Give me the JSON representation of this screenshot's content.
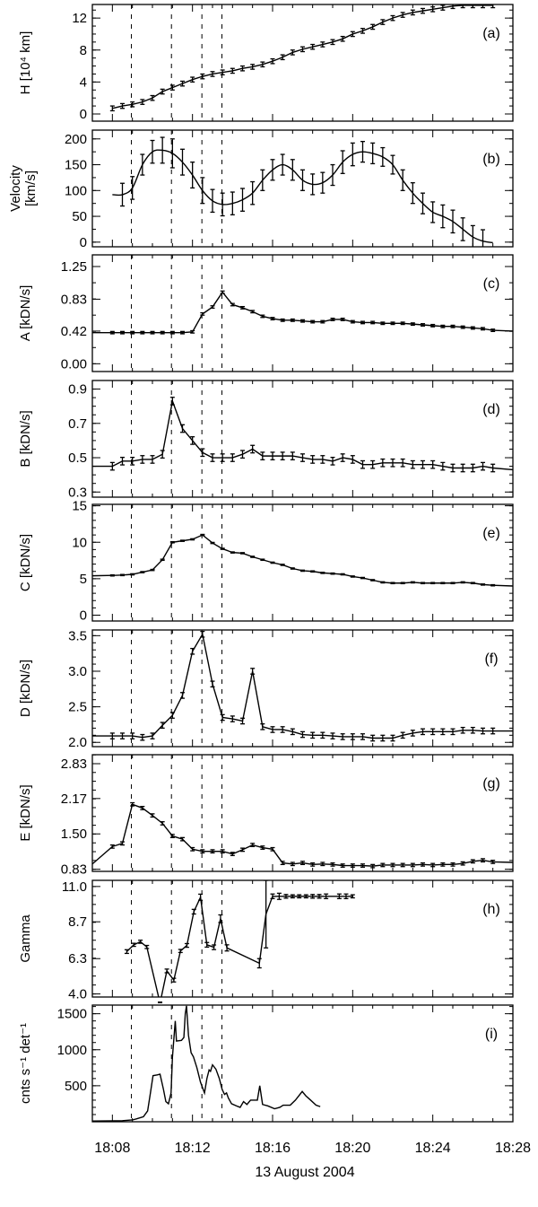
{
  "chart_data": {
    "type": "line",
    "layout": "9 vertically stacked panels sharing time axis",
    "xlabel": "13 August 2004",
    "x_unit": "minutes after 18:00",
    "xlim": [
      7,
      28
    ],
    "x_ticks": [
      8,
      12,
      16,
      20,
      24,
      28
    ],
    "x_tick_labels": [
      "18:08",
      "18:12",
      "18:16",
      "18:20",
      "18:24",
      "18:28"
    ],
    "x_minor_step": 1,
    "vertical_dashed_markers": [
      8.95,
      10.95,
      12.47,
      13.47
    ],
    "panels": [
      {
        "id": "a",
        "tag": "(a)",
        "ylabel": [
          "H [10⁴ km]"
        ],
        "ylim": [
          -0.9,
          13.7
        ],
        "yticks": [
          0,
          4,
          8,
          12
        ],
        "ytick_labels": [
          "0",
          "4",
          "8",
          "12"
        ],
        "y_minor_step": 1,
        "style": "line-errorbars",
        "x0": 8,
        "dx": 0.5,
        "err": 0.3,
        "y": [
          0.7,
          1.0,
          1.2,
          1.5,
          2.0,
          2.8,
          3.3,
          3.8,
          4.3,
          4.7,
          5.0,
          5.2,
          5.4,
          5.7,
          5.9,
          6.2,
          6.6,
          7.1,
          7.7,
          8.1,
          8.4,
          8.7,
          9.0,
          9.4,
          10.0,
          10.4,
          10.9,
          11.5,
          12.0,
          12.4,
          12.7,
          12.9,
          13.1,
          13.3,
          13.5,
          13.6,
          13.6,
          13.6,
          13.6
        ]
      },
      {
        "id": "b",
        "tag": "(b)",
        "ylabel": [
          "Velocity",
          "[km/s]"
        ],
        "ylim": [
          -9,
          217
        ],
        "yticks": [
          0,
          50,
          100,
          150,
          200
        ],
        "ytick_labels": [
          "0",
          "50",
          "100",
          "150",
          "200"
        ],
        "y_minor_step": 25,
        "style": "smooth-errorbars",
        "x0": 8.5,
        "dx": 0.5,
        "lead_x": 8.0,
        "lead": 92,
        "tail_x": 27.0,
        "tail": -1,
        "y": [
          92,
          105,
          150,
          175,
          178,
          172,
          155,
          130,
          100,
          80,
          73,
          75,
          82,
          95,
          120,
          140,
          150,
          140,
          120,
          112,
          115,
          130,
          155,
          170,
          175,
          172,
          165,
          150,
          120,
          95,
          75,
          58,
          50,
          40,
          25,
          10,
          2
        ],
        "err": [
          22,
          22,
          20,
          22,
          25,
          28,
          25,
          25,
          25,
          22,
          22,
          22,
          22,
          22,
          20,
          20,
          20,
          20,
          20,
          20,
          20,
          20,
          22,
          22,
          20,
          20,
          18,
          18,
          20,
          20,
          20,
          20,
          22,
          22,
          22,
          22,
          22
        ]
      },
      {
        "id": "c",
        "tag": "(c)",
        "ylabel": [
          "A [kDN/s]"
        ],
        "ylim": [
          -0.1,
          1.4
        ],
        "yticks": [
          0,
          0.42,
          0.83,
          1.25
        ],
        "ytick_labels": [
          "0.00",
          "0.42",
          "0.83",
          "1.25"
        ],
        "y_minor_step": 0.2083,
        "style": "line-errorbars",
        "x0": 8,
        "dx": 0.5,
        "err": 0.015,
        "lead": 0.4,
        "tail": 0.42,
        "y": [
          0.4,
          0.4,
          0.4,
          0.4,
          0.4,
          0.4,
          0.4,
          0.4,
          0.41,
          0.64,
          0.73,
          0.92,
          0.76,
          0.72,
          0.67,
          0.61,
          0.58,
          0.56,
          0.56,
          0.55,
          0.54,
          0.54,
          0.57,
          0.57,
          0.54,
          0.53,
          0.53,
          0.52,
          0.52,
          0.52,
          0.51,
          0.5,
          0.49,
          0.48,
          0.48,
          0.47,
          0.46,
          0.45,
          0.43
        ]
      },
      {
        "id": "d",
        "tag": "(d)",
        "ylabel": [
          "B [kDN/s]"
        ],
        "ylim": [
          0.27,
          0.95
        ],
        "yticks": [
          0.3,
          0.5,
          0.7,
          0.9
        ],
        "ytick_labels": [
          "0.3",
          "0.5",
          "0.7",
          "0.9"
        ],
        "y_minor_step": 0.05,
        "style": "line-errorbars",
        "x0": 8,
        "dx": 0.5,
        "err": 0.022,
        "lead": 0.45,
        "tail": 0.43,
        "y": [
          0.45,
          0.48,
          0.48,
          0.49,
          0.49,
          0.52,
          0.83,
          0.67,
          0.6,
          0.53,
          0.5,
          0.5,
          0.5,
          0.52,
          0.55,
          0.51,
          0.51,
          0.51,
          0.51,
          0.5,
          0.49,
          0.49,
          0.48,
          0.5,
          0.49,
          0.46,
          0.46,
          0.47,
          0.47,
          0.47,
          0.46,
          0.46,
          0.46,
          0.45,
          0.44,
          0.44,
          0.44,
          0.45,
          0.44
        ]
      },
      {
        "id": "e",
        "tag": "(e)",
        "ylabel": [
          "C [kDN/s]"
        ],
        "ylim": [
          -0.8,
          15.2
        ],
        "yticks": [
          0,
          5,
          10,
          15
        ],
        "ytick_labels": [
          "0",
          "5",
          "10",
          "15"
        ],
        "y_minor_step": 1,
        "style": "line-errorbars",
        "x0": 8,
        "dx": 0.5,
        "err": 0.08,
        "lead": 5.4,
        "tail": 4.0,
        "y": [
          5.45,
          5.5,
          5.6,
          5.9,
          6.2,
          7.6,
          10.0,
          10.2,
          10.4,
          11.0,
          9.9,
          9.1,
          8.6,
          8.5,
          8.0,
          7.6,
          7.2,
          6.9,
          6.4,
          6.1,
          6.0,
          5.8,
          5.7,
          5.6,
          5.3,
          5.1,
          4.8,
          4.5,
          4.4,
          4.4,
          4.5,
          4.4,
          4.4,
          4.4,
          4.4,
          4.5,
          4.4,
          4.2,
          4.1
        ]
      },
      {
        "id": "f",
        "tag": "(f)",
        "ylabel": [
          "D [kDN/s]"
        ],
        "ylim": [
          1.94,
          3.58
        ],
        "yticks": [
          2.0,
          2.5,
          3.0,
          3.5
        ],
        "ytick_labels": [
          "2.0",
          "2.5",
          "3.0",
          "3.5"
        ],
        "y_minor_step": 0.1,
        "style": "line-errorbars",
        "x0": 8,
        "dx": 0.5,
        "err": 0.04,
        "lead": 2.09,
        "tail": 2.16,
        "y": [
          2.09,
          2.09,
          2.09,
          2.07,
          2.09,
          2.24,
          2.38,
          2.66,
          3.28,
          3.52,
          2.82,
          2.35,
          2.33,
          2.3,
          3.0,
          2.22,
          2.18,
          2.18,
          2.15,
          2.11,
          2.1,
          2.1,
          2.09,
          2.08,
          2.08,
          2.08,
          2.06,
          2.06,
          2.06,
          2.1,
          2.13,
          2.15,
          2.15,
          2.15,
          2.15,
          2.17,
          2.17,
          2.16,
          2.16
        ]
      },
      {
        "id": "g",
        "tag": "(g)",
        "ylabel": [
          "E [kDN/s]"
        ],
        "ylim": [
          0.79,
          3.0
        ],
        "yticks": [
          0.83,
          1.5,
          2.17,
          2.83
        ],
        "ytick_labels": [
          "0.83",
          "1.50",
          "2.17",
          "2.83"
        ],
        "y_minor_step": 0.1667,
        "style": "line-errorbars",
        "x0": 8,
        "dx": 0.5,
        "err": 0.03,
        "lead": 0.93,
        "tail": 0.96,
        "y": [
          1.26,
          1.32,
          2.06,
          1.99,
          1.85,
          1.7,
          1.46,
          1.4,
          1.21,
          1.17,
          1.17,
          1.17,
          1.12,
          1.2,
          1.29,
          1.24,
          1.21,
          0.95,
          0.93,
          0.95,
          0.92,
          0.93,
          0.92,
          0.9,
          0.9,
          0.9,
          0.89,
          0.91,
          0.91,
          0.91,
          0.91,
          0.92,
          0.91,
          0.92,
          0.92,
          0.94,
          0.98,
          1.0,
          0.97
        ]
      },
      {
        "id": "h",
        "tag": "(h)",
        "ylabel": [
          "Gamma"
        ],
        "ylim": [
          3.8,
          11.4
        ],
        "yticks": [
          4.0,
          6.3,
          8.7,
          11.0
        ],
        "ytick_labels": [
          "4.0",
          "6.3",
          "8.7",
          "11.0"
        ],
        "y_minor_step": 0.583,
        "style": "line-errorbars",
        "x": [
          8.72,
          9.07,
          9.4,
          9.72,
          10.38,
          10.72,
          11.07,
          11.4,
          11.72,
          12.07,
          12.4,
          12.72,
          13.07,
          13.4,
          13.72,
          15.34,
          15.67,
          16.0,
          16.33,
          16.67,
          17.0,
          17.33,
          17.67,
          18.0,
          18.33,
          18.67,
          19.33,
          19.67,
          20.0
        ],
        "y": [
          6.76,
          7.2,
          7.4,
          7.06,
          3.4,
          5.5,
          4.9,
          6.8,
          7.16,
          9.36,
          10.3,
          7.2,
          7.04,
          8.9,
          7.0,
          6.0,
          9.2,
          10.36,
          10.36,
          10.36,
          10.36,
          10.36,
          10.36,
          10.36,
          10.36,
          10.36,
          10.36,
          10.36,
          10.36
        ],
        "err": [
          0.12,
          0.1,
          0.1,
          0.1,
          0.1,
          0.12,
          0.12,
          0.1,
          0.12,
          0.15,
          0.2,
          0.15,
          0.15,
          0.25,
          0.2,
          0.3,
          2.2,
          0.15,
          0.2,
          0.12,
          0.1,
          0.1,
          0.1,
          0.12,
          0.12,
          0.15,
          0.15,
          0.15,
          0.1
        ]
      },
      {
        "id": "i",
        "tag": "(i)",
        "ylabel": [
          "cnts s⁻¹ det⁻¹"
        ],
        "ylim": [
          0,
          1620
        ],
        "yticks": [
          500,
          1000,
          1500
        ],
        "ytick_labels": [
          "500",
          "1000",
          "1500"
        ],
        "y_minor_step": 100,
        "style": "line",
        "x": [
          7.02,
          8.5,
          9.0,
          9.2,
          9.55,
          9.76,
          9.9,
          10.03,
          10.24,
          10.38,
          10.55,
          10.67,
          10.8,
          10.93,
          11.0,
          11.14,
          11.2,
          11.45,
          11.57,
          11.64,
          11.7,
          11.8,
          11.93,
          12.05,
          12.22,
          12.4,
          12.6,
          12.72,
          12.83,
          12.9,
          13.0,
          13.17,
          13.34,
          13.48,
          13.6,
          13.7,
          13.79,
          13.95,
          14.2,
          14.38,
          14.55,
          14.72,
          14.9,
          15.24,
          15.36,
          15.5,
          15.76,
          16.1,
          16.36,
          16.53,
          16.88,
          17.14,
          17.48,
          17.66,
          17.9,
          18.17,
          18.38
        ],
        "y": [
          10,
          15,
          25,
          40,
          70,
          150,
          400,
          640,
          650,
          660,
          450,
          280,
          250,
          400,
          900,
          1400,
          1120,
          1130,
          1170,
          1500,
          1610,
          1200,
          960,
          900,
          750,
          550,
          400,
          600,
          720,
          700,
          790,
          730,
          600,
          450,
          380,
          400,
          330,
          250,
          220,
          200,
          280,
          240,
          300,
          300,
          500,
          240,
          220,
          180,
          200,
          230,
          230,
          300,
          420,
          360,
          300,
          230,
          210
        ]
      }
    ]
  }
}
